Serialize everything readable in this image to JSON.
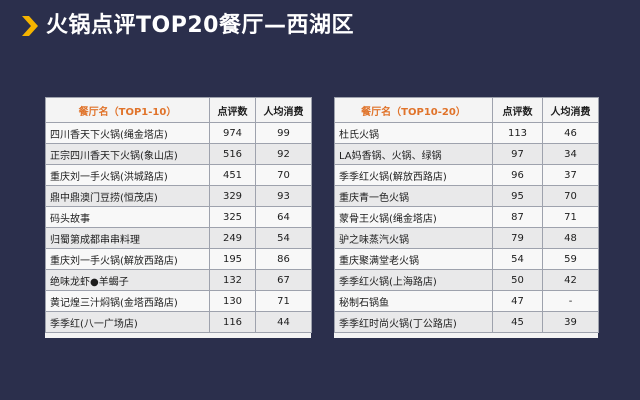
{
  "title": "火锅点评TOP20餐厅—西湖区",
  "colors": {
    "background": "#2b2f4c",
    "chevron": "#f5b400",
    "header_name": "#e0732a"
  },
  "left_table": {
    "headers": [
      "餐厅名（TOP1-10）",
      "点评数",
      "人均消费"
    ],
    "rows": [
      [
        "四川香天下火锅(绳金塔店)",
        "974",
        "99"
      ],
      [
        "正宗四川香天下火锅(象山店)",
        "516",
        "92"
      ],
      [
        "重庆刘一手火锅(洪城路店)",
        "451",
        "70"
      ],
      [
        "鼎中鼎澳门豆捞(恒茂店)",
        "329",
        "93"
      ],
      [
        "码头故事",
        "325",
        "64"
      ],
      [
        "归蜀第成都串串料理",
        "249",
        "54"
      ],
      [
        "重庆刘一手火锅(解放西路店)",
        "195",
        "86"
      ],
      [
        "绝味龙虾●羊蝎子",
        "132",
        "67"
      ],
      [
        "黄记煌三汁焖锅(金塔西路店)",
        "130",
        "71"
      ],
      [
        "季季红(八一广场店)",
        "116",
        "44"
      ]
    ]
  },
  "right_table": {
    "headers": [
      "餐厅名（TOP10-20）",
      "点评数",
      "人均消费"
    ],
    "rows": [
      [
        "杜氏火锅",
        "113",
        "46"
      ],
      [
        "LA妈香锅、火锅、绿锅",
        "97",
        "34"
      ],
      [
        "季季红火锅(解放西路店)",
        "96",
        "37"
      ],
      [
        "重庆青一色火锅",
        "95",
        "70"
      ],
      [
        "蒙骨王火锅(绳金塔店)",
        "87",
        "71"
      ],
      [
        "驴之味蒸汽火锅",
        "79",
        "48"
      ],
      [
        "重庆聚满堂老火锅",
        "54",
        "59"
      ],
      [
        "季季红火锅(上海路店)",
        "50",
        "42"
      ],
      [
        "秘制石锅鱼",
        "47",
        "-"
      ],
      [
        "季季红时尚火锅(丁公路店)",
        "45",
        "39"
      ]
    ]
  }
}
